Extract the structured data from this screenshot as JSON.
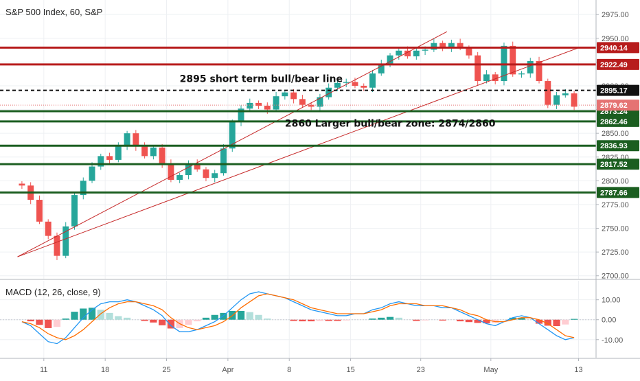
{
  "header": {
    "title": "S&P 500 Index, 60, S&P"
  },
  "macd": {
    "title": "MACD (12, 26, close, 9)"
  },
  "colors": {
    "up": "#26a69a",
    "down": "#ef5350",
    "resistance": "#b71c1c",
    "support": "#1b5e20",
    "channel": "#c62828",
    "current": "#e57373",
    "macd_line": "#2196f3",
    "signal_line": "#ff6d00",
    "hist_pos_strong": "#26a69a",
    "hist_pos_weak": "#b2dfdb",
    "hist_neg_strong": "#ef5350",
    "hist_neg_weak": "#ffcdd2"
  },
  "chart_data": [
    {
      "type": "candlestick",
      "title": "S&P 500 Index, 60, S&P",
      "x_ticks": [
        "11",
        "18",
        "25",
        "Apr",
        "8",
        "15",
        "23",
        "May",
        "13"
      ],
      "x_tick_positions": [
        2.5,
        9.5,
        16.5,
        23.5,
        30.5,
        37.5,
        45.5,
        53.5,
        63.5
      ],
      "y_ticks": [
        "2975.00",
        "2950.00",
        "2925.00",
        "2900.00",
        "2875.00",
        "2850.00",
        "2825.00",
        "2800.00",
        "2775.00",
        "2750.00",
        "2725.00",
        "2700.00"
      ],
      "ylim": [
        2698,
        2982
      ],
      "xlim": [
        -2.5,
        65.5
      ],
      "candles_close": [
        2795,
        2780,
        2757,
        2742,
        2721,
        2752,
        2785,
        2800,
        2815,
        2826,
        2822,
        2836,
        2850,
        2836,
        2826,
        2835,
        2818,
        2801,
        2806,
        2818,
        2812,
        2803,
        2808,
        2834,
        2862,
        2876,
        2882,
        2879,
        2875,
        2889,
        2893,
        2886,
        2880,
        2878,
        2888,
        2898,
        2903,
        2904,
        2900,
        2898,
        2913,
        2923,
        2932,
        2937,
        2931,
        2937,
        2938,
        2945,
        2940,
        2945,
        2940,
        2932,
        2905,
        2912,
        2905,
        2942,
        2912,
        2913,
        2926,
        2905,
        2880,
        2890,
        2892,
        2878
      ],
      "horizontal_levels": [
        {
          "label": "2940.14",
          "value": 2940.14,
          "kind": "resistance"
        },
        {
          "label": "2922.49",
          "value": 2922.49,
          "kind": "resistance"
        },
        {
          "label": "2895.17",
          "value": 2895.17,
          "kind": "pivot"
        },
        {
          "label": "2873.24",
          "value": 2873.24,
          "kind": "support"
        },
        {
          "label": "2862.46",
          "value": 2862.46,
          "kind": "support"
        },
        {
          "label": "2836.93",
          "value": 2836.93,
          "kind": "support"
        },
        {
          "label": "2817.52",
          "value": 2817.52,
          "kind": "support"
        },
        {
          "label": "2787.66",
          "value": 2787.66,
          "kind": "support"
        }
      ],
      "current_price": {
        "label": "2879.62",
        "value": 2879.62
      },
      "channel_lines": [
        {
          "from": [
            -0.5,
            2720
          ],
          "to": [
            48.5,
            2957
          ]
        },
        {
          "from": [
            -0.5,
            2720
          ],
          "to": [
            63.5,
            2940
          ]
        }
      ],
      "annotations": [
        {
          "text": "2895 short term bull/bear line",
          "x": 18,
          "y": 2904
        },
        {
          "text": "2860 Larger bull/bear zone: 2874/2860",
          "x": 30,
          "y": 2857
        }
      ]
    },
    {
      "type": "line",
      "title": "MACD (12, 26, close, 9)",
      "y_ticks": [
        "10.00",
        "0.00",
        "-10.00"
      ],
      "y_tick_values": [
        10,
        0,
        -10
      ],
      "ylim": [
        -18,
        18.5
      ],
      "series": [
        {
          "values": [
            -1,
            -3,
            -7,
            -11,
            -12,
            -9,
            -4,
            1,
            5,
            8,
            9,
            9,
            10,
            9,
            7,
            5,
            2,
            -3,
            -6,
            -6,
            -5,
            -3,
            -1,
            2,
            6,
            10,
            13,
            14,
            13,
            12,
            11,
            9,
            7,
            5,
            4,
            3,
            2,
            2,
            3,
            3,
            5,
            6,
            8,
            9,
            8,
            7,
            7,
            7,
            6,
            6,
            4,
            2,
            0,
            -2,
            -3,
            -1,
            1,
            2,
            1,
            -2,
            -5,
            -8,
            -10,
            -9
          ]
        },
        {
          "values": [
            -1,
            -2,
            -4,
            -7,
            -9,
            -10,
            -8,
            -5,
            -1,
            3,
            6,
            8,
            9,
            9,
            8,
            7,
            5,
            1,
            -2,
            -4,
            -5,
            -4,
            -3,
            -1,
            2,
            6,
            9,
            12,
            13,
            12,
            11,
            10,
            8,
            6,
            5,
            4,
            3,
            3,
            3,
            3,
            4,
            5,
            7,
            8,
            8,
            8,
            7,
            7,
            7,
            6,
            5,
            3,
            2,
            0,
            -1,
            -1,
            0,
            1,
            1,
            0,
            -2,
            -5,
            -8,
            -9
          ]
        }
      ],
      "histogram": [
        0.0,
        -0.8,
        -2.6,
        -4.2,
        -3.6,
        0.6,
        4.0,
        5.6,
        6.0,
        5.0,
        3.4,
        1.8,
        1.0,
        0.0,
        -0.6,
        -1.4,
        -2.8,
        -4.4,
        -4.2,
        -2.6,
        -0.8,
        1.0,
        2.4,
        3.4,
        4.4,
        4.4,
        3.8,
        2.4,
        0.6,
        0.0,
        0.0,
        -0.6,
        -0.8,
        -0.8,
        -0.6,
        -0.6,
        -0.6,
        -0.2,
        0.0,
        0.0,
        0.6,
        1.0,
        1.4,
        1.0,
        0.0,
        -0.6,
        -0.2,
        0.0,
        -0.4,
        0.0,
        -0.8,
        -1.2,
        -1.6,
        -1.8,
        -1.6,
        0.0,
        1.0,
        1.0,
        0.0,
        -2.0,
        -3.0,
        -3.2,
        -2.4,
        0.4
      ]
    }
  ]
}
